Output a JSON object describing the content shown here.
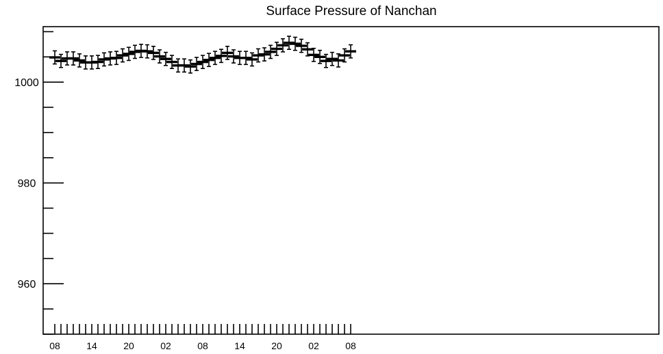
{
  "chart_data": {
    "type": "line",
    "title": "Surface Pressure of Nanchan",
    "xlabel": "",
    "ylabel": "",
    "ylim": [
      950,
      1011
    ],
    "y_major_ticks": [
      960,
      980,
      1000
    ],
    "y_minor_step": 5,
    "x_tick_labels": [
      "08",
      "14",
      "20",
      "02",
      "08",
      "14",
      "20",
      "02",
      "08"
    ],
    "x_tick_hours": [
      0,
      6,
      12,
      18,
      24,
      30,
      36,
      42,
      48
    ],
    "grid": false,
    "error_bar": 1.3,
    "series": [
      {
        "x": [
          0,
          1,
          2,
          3,
          4,
          5,
          6,
          7,
          8,
          9,
          10,
          11,
          12,
          13,
          14,
          15,
          16,
          17,
          18,
          19,
          20,
          21,
          22,
          23,
          24,
          25,
          26,
          27,
          28,
          29,
          30,
          31,
          32,
          33,
          34,
          35,
          36,
          37,
          38,
          39,
          40,
          41,
          42,
          43,
          44,
          45,
          46,
          47,
          48
        ],
        "values": [
          1004.9,
          1004.2,
          1004.7,
          1004.7,
          1004.3,
          1003.9,
          1003.9,
          1004.0,
          1004.5,
          1004.7,
          1004.8,
          1005.3,
          1005.6,
          1006.0,
          1006.2,
          1006.1,
          1005.8,
          1005.1,
          1004.6,
          1004.0,
          1003.3,
          1003.3,
          1003.1,
          1003.6,
          1004.0,
          1004.4,
          1004.8,
          1005.2,
          1005.8,
          1005.1,
          1004.8,
          1004.8,
          1004.5,
          1005.3,
          1005.5,
          1006.0,
          1006.6,
          1007.3,
          1007.8,
          1007.6,
          1007.2,
          1006.5,
          1005.4,
          1005.0,
          1004.2,
          1004.6,
          1004.3,
          1005.3,
          1006.1
        ]
      }
    ]
  }
}
